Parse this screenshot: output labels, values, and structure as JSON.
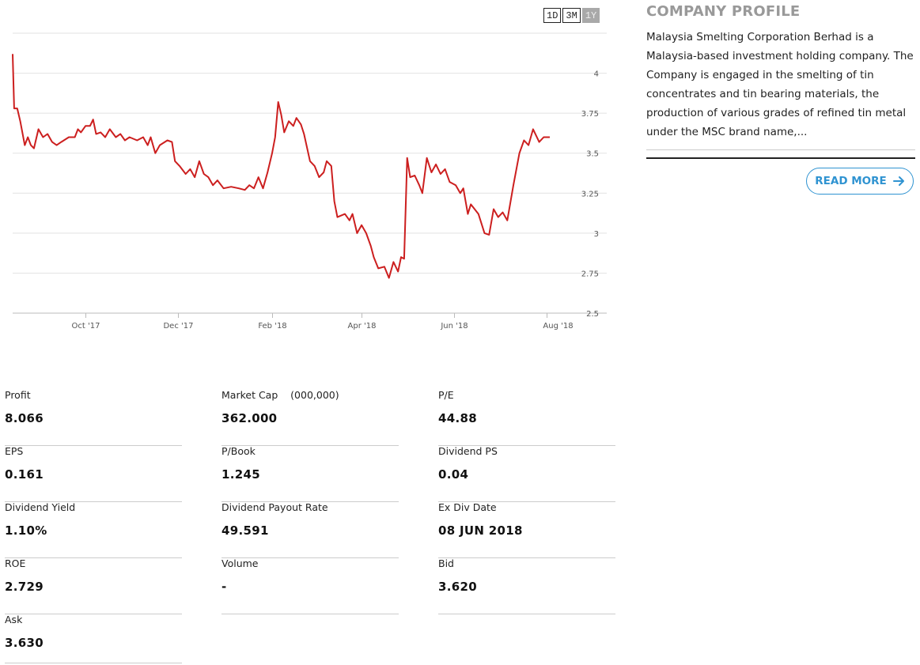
{
  "range_buttons": [
    {
      "label": "1D",
      "active": false
    },
    {
      "label": "3M",
      "active": false
    },
    {
      "label": "1Y",
      "active": true
    }
  ],
  "chart_data": {
    "type": "line",
    "x_tick_labels": [
      "Oct '17",
      "Dec '17",
      "Feb '18",
      "Apr '18",
      "Jun '18",
      "Aug '18"
    ],
    "y_ticks": [
      2.5,
      2.75,
      3,
      3.25,
      3.5,
      3.75,
      4
    ],
    "y_tick_labels": [
      "2.5",
      "2.75",
      "3",
      "3.25",
      "3.5",
      "3.75",
      "4"
    ],
    "ylim": [
      2.5,
      4.25
    ],
    "x_range": [
      "2017-08-14",
      "2018-08-15"
    ],
    "line_color": "#cc1f1f",
    "grid": true,
    "series": [
      {
        "points": [
          [
            "2017-08-14",
            4.12
          ],
          [
            "2017-08-15",
            3.78
          ],
          [
            "2017-08-17",
            3.78
          ],
          [
            "2017-08-19",
            3.7
          ],
          [
            "2017-08-22",
            3.55
          ],
          [
            "2017-08-24",
            3.6
          ],
          [
            "2017-08-26",
            3.55
          ],
          [
            "2017-08-28",
            3.53
          ],
          [
            "2017-08-31",
            3.65
          ],
          [
            "2017-09-03",
            3.6
          ],
          [
            "2017-09-06",
            3.62
          ],
          [
            "2017-09-09",
            3.57
          ],
          [
            "2017-09-12",
            3.55
          ],
          [
            "2017-09-15",
            3.57
          ],
          [
            "2017-09-20",
            3.6
          ],
          [
            "2017-09-24",
            3.6
          ],
          [
            "2017-09-26",
            3.65
          ],
          [
            "2017-09-28",
            3.63
          ],
          [
            "2017-10-01",
            3.67
          ],
          [
            "2017-10-04",
            3.67
          ],
          [
            "2017-10-06",
            3.71
          ],
          [
            "2017-10-08",
            3.62
          ],
          [
            "2017-10-11",
            3.63
          ],
          [
            "2017-10-14",
            3.6
          ],
          [
            "2017-10-17",
            3.65
          ],
          [
            "2017-10-21",
            3.6
          ],
          [
            "2017-10-24",
            3.62
          ],
          [
            "2017-10-27",
            3.58
          ],
          [
            "2017-10-30",
            3.6
          ],
          [
            "2017-11-04",
            3.58
          ],
          [
            "2017-11-08",
            3.6
          ],
          [
            "2017-11-11",
            3.55
          ],
          [
            "2017-11-13",
            3.6
          ],
          [
            "2017-11-16",
            3.5
          ],
          [
            "2017-11-19",
            3.55
          ],
          [
            "2017-11-24",
            3.58
          ],
          [
            "2017-11-27",
            3.57
          ],
          [
            "2017-11-29",
            3.45
          ],
          [
            "2017-12-02",
            3.42
          ],
          [
            "2017-12-06",
            3.37
          ],
          [
            "2017-12-09",
            3.4
          ],
          [
            "2017-12-12",
            3.35
          ],
          [
            "2017-12-15",
            3.45
          ],
          [
            "2017-12-18",
            3.37
          ],
          [
            "2017-12-21",
            3.35
          ],
          [
            "2017-12-24",
            3.3
          ],
          [
            "2017-12-27",
            3.33
          ],
          [
            "2017-12-31",
            3.28
          ],
          [
            "2018-01-05",
            3.29
          ],
          [
            "2018-01-10",
            3.28
          ],
          [
            "2018-01-14",
            3.27
          ],
          [
            "2018-01-17",
            3.3
          ],
          [
            "2018-01-20",
            3.28
          ],
          [
            "2018-01-23",
            3.35
          ],
          [
            "2018-01-26",
            3.28
          ],
          [
            "2018-01-29",
            3.38
          ],
          [
            "2018-02-01",
            3.5
          ],
          [
            "2018-02-03",
            3.6
          ],
          [
            "2018-02-05",
            3.82
          ],
          [
            "2018-02-07",
            3.74
          ],
          [
            "2018-02-09",
            3.63
          ],
          [
            "2018-02-12",
            3.7
          ],
          [
            "2018-02-15",
            3.67
          ],
          [
            "2018-02-17",
            3.72
          ],
          [
            "2018-02-20",
            3.68
          ],
          [
            "2018-02-22",
            3.62
          ],
          [
            "2018-02-26",
            3.45
          ],
          [
            "2018-03-01",
            3.42
          ],
          [
            "2018-03-04",
            3.35
          ],
          [
            "2018-03-07",
            3.38
          ],
          [
            "2018-03-09",
            3.45
          ],
          [
            "2018-03-12",
            3.42
          ],
          [
            "2018-03-14",
            3.2
          ],
          [
            "2018-03-16",
            3.1
          ],
          [
            "2018-03-21",
            3.12
          ],
          [
            "2018-03-24",
            3.08
          ],
          [
            "2018-03-26",
            3.12
          ],
          [
            "2018-03-29",
            3.0
          ],
          [
            "2018-04-01",
            3.05
          ],
          [
            "2018-04-04",
            3.0
          ],
          [
            "2018-04-07",
            2.92
          ],
          [
            "2018-04-09",
            2.85
          ],
          [
            "2018-04-12",
            2.78
          ],
          [
            "2018-04-16",
            2.79
          ],
          [
            "2018-04-19",
            2.72
          ],
          [
            "2018-04-22",
            2.82
          ],
          [
            "2018-04-25",
            2.76
          ],
          [
            "2018-04-27",
            2.85
          ],
          [
            "2018-04-29",
            2.84
          ],
          [
            "2018-05-01",
            3.47
          ],
          [
            "2018-05-03",
            3.35
          ],
          [
            "2018-05-06",
            3.36
          ],
          [
            "2018-05-09",
            3.3
          ],
          [
            "2018-05-11",
            3.25
          ],
          [
            "2018-05-14",
            3.47
          ],
          [
            "2018-05-17",
            3.38
          ],
          [
            "2018-05-20",
            3.43
          ],
          [
            "2018-05-23",
            3.37
          ],
          [
            "2018-05-26",
            3.4
          ],
          [
            "2018-05-29",
            3.32
          ],
          [
            "2018-06-02",
            3.3
          ],
          [
            "2018-06-05",
            3.25
          ],
          [
            "2018-06-07",
            3.28
          ],
          [
            "2018-06-10",
            3.12
          ],
          [
            "2018-06-12",
            3.18
          ],
          [
            "2018-06-17",
            3.12
          ],
          [
            "2018-06-21",
            3.0
          ],
          [
            "2018-06-24",
            2.99
          ],
          [
            "2018-06-27",
            3.15
          ],
          [
            "2018-06-30",
            3.1
          ],
          [
            "2018-07-03",
            3.13
          ],
          [
            "2018-07-06",
            3.08
          ],
          [
            "2018-07-10",
            3.3
          ],
          [
            "2018-07-14",
            3.5
          ],
          [
            "2018-07-17",
            3.58
          ],
          [
            "2018-07-20",
            3.55
          ],
          [
            "2018-07-23",
            3.65
          ],
          [
            "2018-07-27",
            3.57
          ],
          [
            "2018-07-30",
            3.6
          ],
          [
            "2018-08-03",
            3.6
          ]
        ]
      }
    ]
  },
  "profile": {
    "title_light": "COMPANY",
    "title_bold": "PROFILE",
    "text": "Malaysia Smelting Corporation Berhad is a Malaysia-based investment holding company. The Company is engaged in the smelting of tin concentrates and tin bearing materials, the production of various grades of refined tin metal under the MSC brand name,...",
    "read_more_label": "READ MORE",
    "read_more_color": "#2f93d1"
  },
  "stats": [
    {
      "label": "Profit",
      "value": "8.066"
    },
    {
      "label": "Market Cap    (000,000)",
      "value": "362.000"
    },
    {
      "label": "P/E",
      "value": "44.88"
    },
    {
      "label": "EPS",
      "value": "0.161"
    },
    {
      "label": "P/Book",
      "value": "1.245"
    },
    {
      "label": "Dividend PS",
      "value": "0.04"
    },
    {
      "label": "Dividend Yield",
      "value": "1.10%"
    },
    {
      "label": "Dividend Payout Rate",
      "value": "49.591"
    },
    {
      "label": "Ex Div Date",
      "value": "08 JUN 2018"
    },
    {
      "label": "ROE",
      "value": "2.729"
    },
    {
      "label": "Volume",
      "value": "-"
    },
    {
      "label": "Bid",
      "value": "3.620"
    },
    {
      "label": "Ask",
      "value": "3.630"
    }
  ]
}
